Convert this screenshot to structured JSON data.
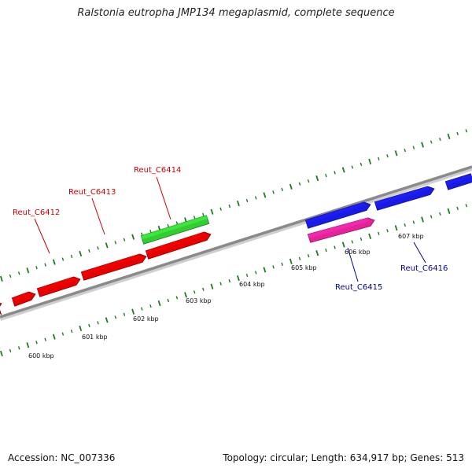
{
  "title": "Ralstonia eutropha JMP134 megaplasmid, complete sequence",
  "accession": "Accession: NC_007336",
  "summary": "Topology: circular; Length: 634,917 bp; Genes: 513",
  "colors": {
    "backbone": "#8a8a8a",
    "tick": "#1e7a1e",
    "forward_gene": "#e60000",
    "reverse_gene": "#1a1ae6",
    "highlight_green": "#33cc33",
    "highlight_pink": "#e6229a",
    "label_red": "#cc0000",
    "label_blue": "#000099"
  },
  "scale_labels": [
    {
      "text": "600 kbp"
    },
    {
      "text": "601 kbp"
    },
    {
      "text": "602 kbp"
    },
    {
      "text": "603 kbp"
    },
    {
      "text": "604 kbp"
    },
    {
      "text": "605 kbp"
    },
    {
      "text": "606 kbp"
    },
    {
      "text": "607 kbp"
    }
  ],
  "gene_labels": [
    {
      "text": "Reut_C6412",
      "color": "#cc0000"
    },
    {
      "text": "Reut_C6413",
      "color": "#cc0000"
    },
    {
      "text": "Reut_C6414",
      "color": "#cc0000"
    },
    {
      "text": "Reut_C6415",
      "color": "#000099"
    },
    {
      "text": "Reut_C6416",
      "color": "#000099"
    }
  ]
}
